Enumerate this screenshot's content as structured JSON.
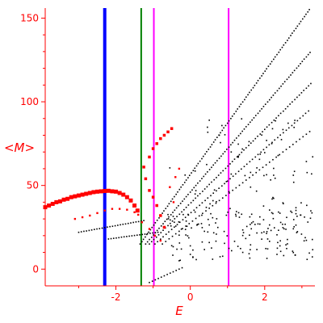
{
  "chart_data": {
    "type": "scatter",
    "title": "",
    "xlabel": "E",
    "ylabel": "<M>",
    "xlim": [
      -3.9,
      3.35
    ],
    "ylim": [
      -10,
      156
    ],
    "xticks": [
      -2,
      0,
      2
    ],
    "yticks": [
      0,
      50,
      100,
      150
    ],
    "grid": false,
    "colors": {
      "axis": "#ff0000",
      "text": "#ff0000",
      "black_points": "#000000",
      "red_points": "#ff0000",
      "blue_line": "#0000ff",
      "green_line": "#008000",
      "magenta_line": "#ff00ff"
    },
    "vertical_lines": [
      {
        "x": -2.3,
        "color": "#0000ff",
        "width": 4
      },
      {
        "x": -1.32,
        "color": "#008000",
        "width": 2
      },
      {
        "x": -0.98,
        "color": "#ff00ff",
        "width": 2
      },
      {
        "x": 1.03,
        "color": "#ff00ff",
        "width": 2
      }
    ],
    "series": [
      {
        "color": "#ff0000",
        "size": "large",
        "points": [
          [
            -3.9,
            37
          ],
          [
            -3.8,
            38
          ],
          [
            -3.7,
            39
          ],
          [
            -3.6,
            40
          ],
          [
            -3.5,
            40.5
          ],
          [
            -3.4,
            41.5
          ],
          [
            -3.3,
            42
          ],
          [
            -3.2,
            43
          ],
          [
            -3.1,
            43.5
          ],
          [
            -3.0,
            44
          ],
          [
            -2.9,
            44.5
          ],
          [
            -2.8,
            45
          ],
          [
            -2.7,
            45.5
          ],
          [
            -2.6,
            46
          ],
          [
            -2.5,
            46.3
          ],
          [
            -2.4,
            46.5
          ],
          [
            -2.3,
            46.7
          ],
          [
            -2.2,
            46.8
          ],
          [
            -2.1,
            46.5
          ],
          [
            -2.0,
            46.3
          ],
          [
            -1.9,
            45.5
          ],
          [
            -1.8,
            44.5
          ],
          [
            -1.7,
            43
          ],
          [
            -1.6,
            41
          ],
          [
            -1.5,
            38
          ],
          [
            -1.42,
            35
          ]
        ]
      },
      {
        "color": "#ff0000",
        "size": "medium",
        "points": [
          [
            -1.25,
            61
          ],
          [
            -1.1,
            67
          ],
          [
            -1.0,
            72
          ],
          [
            -0.9,
            75
          ],
          [
            -0.8,
            78
          ],
          [
            -0.7,
            80
          ],
          [
            -0.6,
            82
          ],
          [
            -0.5,
            84
          ],
          [
            -1.2,
            54
          ],
          [
            -1.1,
            47
          ],
          [
            -1.0,
            43
          ],
          [
            -0.9,
            38
          ],
          [
            -0.8,
            32
          ],
          [
            -0.7,
            25
          ]
        ]
      },
      {
        "color": "#ff0000",
        "size": "small",
        "points": [
          [
            -3.1,
            30
          ],
          [
            -2.9,
            31
          ],
          [
            -2.7,
            32
          ],
          [
            -2.5,
            33.5
          ],
          [
            -2.3,
            35
          ],
          [
            -2.1,
            36
          ],
          [
            -1.9,
            36
          ],
          [
            -1.7,
            35.5
          ],
          [
            -1.5,
            34
          ],
          [
            -1.4,
            32.5
          ],
          [
            -1.3,
            28
          ],
          [
            -1.1,
            24
          ],
          [
            -0.95,
            20
          ],
          [
            -0.8,
            17
          ],
          [
            -0.55,
            49
          ],
          [
            -0.4,
            55
          ],
          [
            -0.3,
            60
          ],
          [
            -0.45,
            40
          ]
        ]
      },
      {
        "color": "#000000",
        "size": "tiny",
        "points": []
      }
    ]
  }
}
